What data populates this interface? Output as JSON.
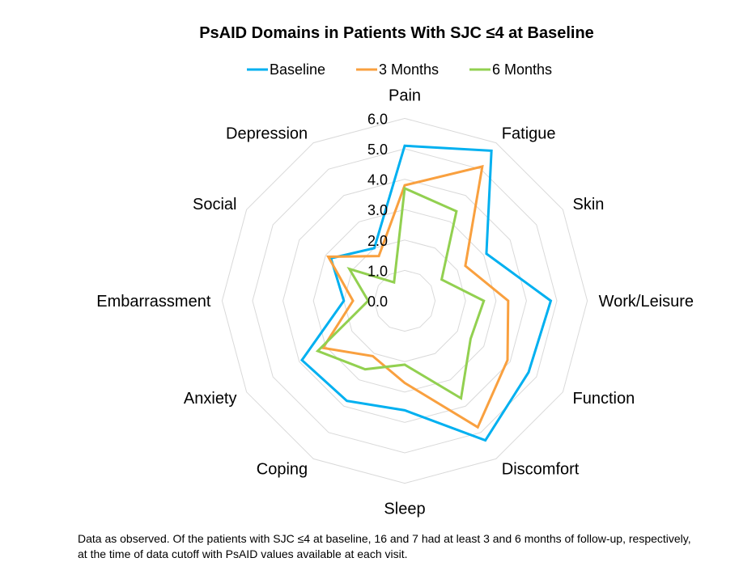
{
  "chart_data": {
    "type": "radar",
    "title": "PsAID Domains in Patients With SJC ≤4 at Baseline",
    "categories": [
      "Pain",
      "Fatigue",
      "Skin",
      "Work/Leisure",
      "Function",
      "Discomfort",
      "Sleep",
      "Coping",
      "Anxiety",
      "Embarrassment",
      "Social",
      "Depression"
    ],
    "rlim": [
      0,
      6
    ],
    "ticks": [
      "0.0",
      "1.0",
      "2.0",
      "3.0",
      "4.0",
      "5.0",
      "6.0"
    ],
    "grid": true,
    "legend_position": "top",
    "series": [
      {
        "name": "Baseline",
        "color": "#00B0F0",
        "values": [
          5.1,
          5.7,
          3.1,
          4.8,
          4.7,
          5.3,
          3.6,
          3.8,
          3.9,
          2.0,
          2.8,
          2.0
        ]
      },
      {
        "name": "3 Months",
        "color": "#F9A03F",
        "values": [
          3.8,
          5.1,
          2.3,
          3.4,
          3.9,
          4.8,
          2.7,
          2.1,
          3.1,
          1.7,
          2.9,
          1.7
        ]
      },
      {
        "name": "6 Months",
        "color": "#92D050",
        "values": [
          3.7,
          3.4,
          1.4,
          2.6,
          2.5,
          3.7,
          2.1,
          2.6,
          3.3,
          1.2,
          2.1,
          0.7
        ]
      }
    ]
  },
  "footnote": "Data as observed. Of the patients with SJC ≤4 at baseline, 16 and 7 had at least 3 and 6 months of follow-up, respectively, at the time of data cutoff with PsAID values available at each visit."
}
